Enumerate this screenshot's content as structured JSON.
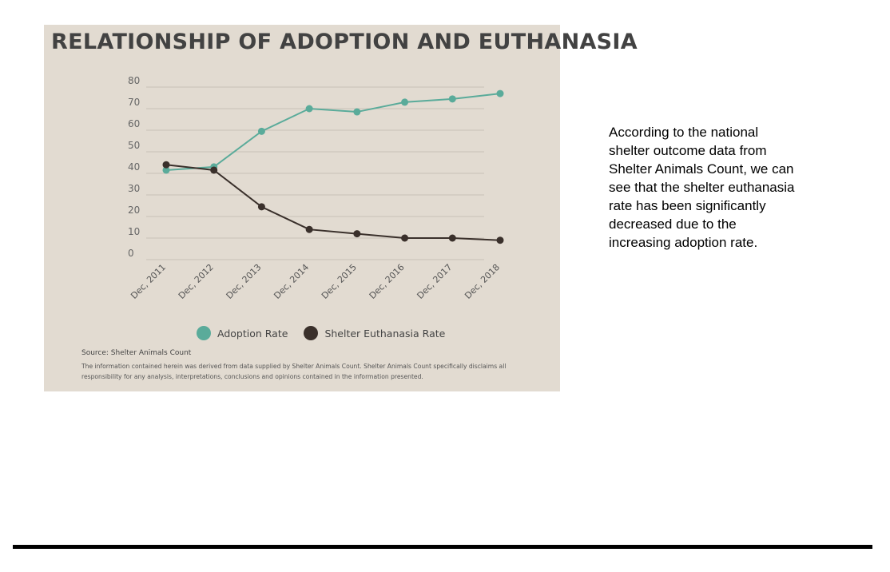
{
  "title": "RELATIONSHIP OF ADOPTION AND EUTHANASIA",
  "source": "Source: Shelter Animals Count",
  "disclaimer": "The information contained herein was derived from data supplied by Shelter Animals Count. Shelter Animals Count specifically disclaims all responsibility for any analysis, interpretations, conclusions and opinions contained in the information presented.",
  "side_text": "According to the national shelter outcome data from Shelter Animals Count, we can see that the shelter euthanasia rate has been significantly decreased due to the increasing adoption rate.",
  "colors": {
    "panel_background": "#e2dbd1",
    "adoption": "#5aab9a",
    "euthanasia": "#3a302b",
    "gridline": "#c8c0b6"
  },
  "chart_data": {
    "type": "line",
    "title": "RELATIONSHIP OF ADOPTION AND EUTHANASIA",
    "categories": [
      "Dec, 2011",
      "Dec, 2012",
      "Dec, 2013",
      "Dec, 2014",
      "Dec, 2015",
      "Dec, 2016",
      "Dec, 2017",
      "Dec, 2018"
    ],
    "series": [
      {
        "name": "Adoption Rate",
        "color": "#5aab9a",
        "values": [
          41.5,
          43,
          59.5,
          70,
          68.5,
          73,
          74.5,
          77
        ]
      },
      {
        "name": "Shelter Euthanasia Rate",
        "color": "#3a302b",
        "values": [
          44,
          41.5,
          24.5,
          14,
          12,
          10,
          10,
          9
        ]
      }
    ],
    "ylim": [
      0,
      80
    ],
    "yticks": [
      0,
      10,
      20,
      30,
      40,
      50,
      60,
      70,
      80
    ],
    "xlabel": "",
    "ylabel": "",
    "grid": true,
    "legend_position": "bottom"
  }
}
